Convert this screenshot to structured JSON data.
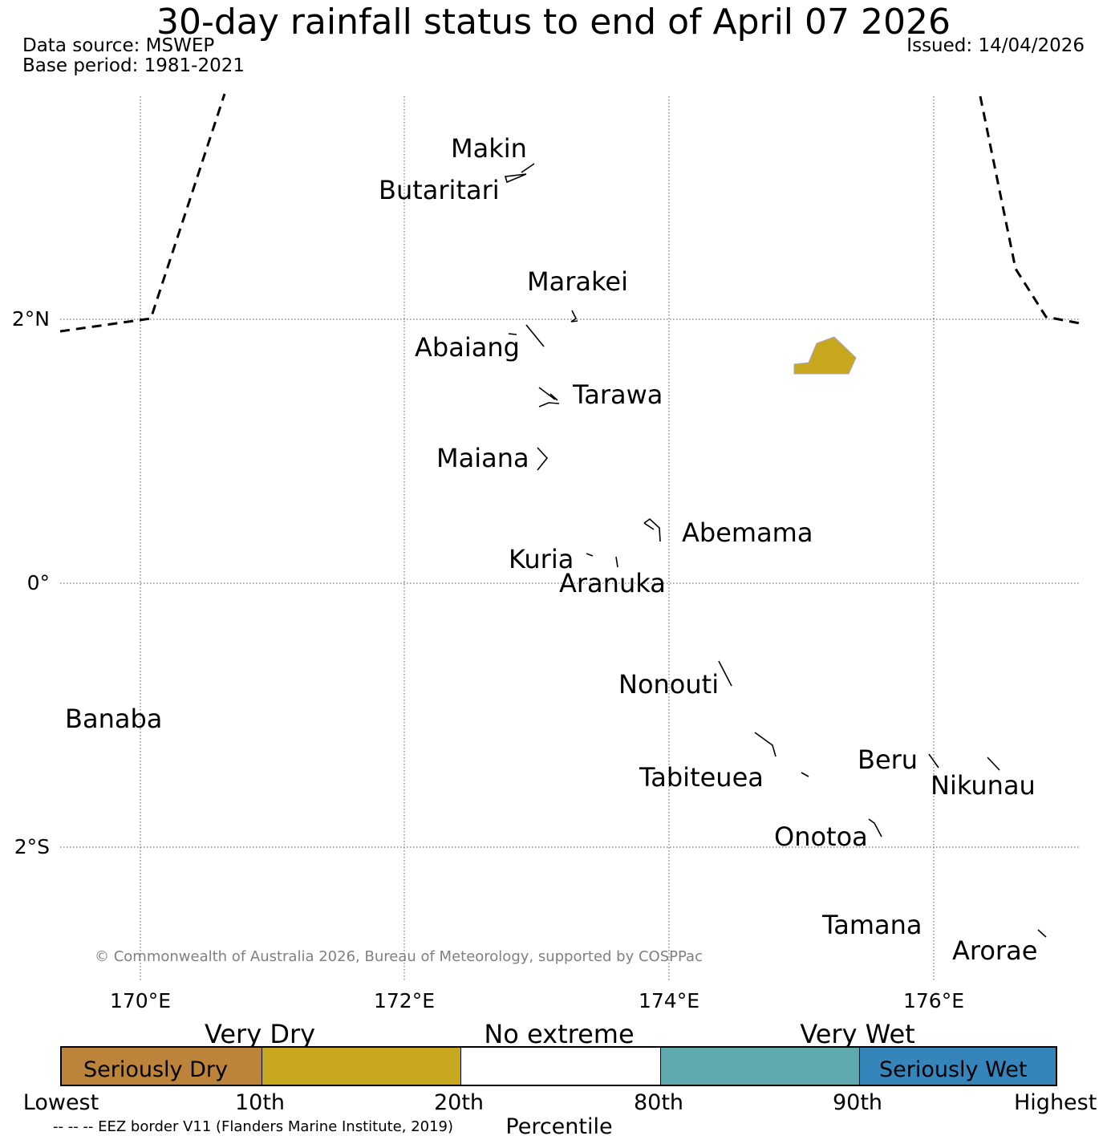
{
  "header": {
    "title": "30-day rainfall status to end of April 07 2026",
    "data_source": "Data source: MSWEP",
    "base_period": "Base period: 1981-2021",
    "issued": "Issued: 14/04/2026"
  },
  "map": {
    "lat_labels": [
      "2°N",
      "0°",
      "2°S"
    ],
    "lon_labels": [
      "170°E",
      "172°E",
      "174°E",
      "176°E"
    ],
    "islands": {
      "makin": "Makin",
      "butaritari": "Butaritari",
      "marakei": "Marakei",
      "abaiang": "Abaiang",
      "tarawa": "Tarawa",
      "maiana": "Maiana",
      "abemama": "Abemama",
      "kuria": "Kuria",
      "aranuka": "Aranuka",
      "nonouti": "Nonouti",
      "banaba": "Banaba",
      "beru": "Beru",
      "tabiteuea": "Tabiteuea",
      "nikunau": "Nikunau",
      "onotoa": "Onotoa",
      "tamana": "Tamana",
      "arorae": "Arorae"
    },
    "copyright": "© Commonwealth of Australia 2026, Bureau of Meteorology, supported by COSPPac"
  },
  "legend": {
    "categories": [
      "Very Dry",
      "No extreme",
      "Very Wet"
    ],
    "segments": [
      {
        "label": "Seriously Dry",
        "color": "#bc843b"
      },
      {
        "label": "",
        "color": "#c6a71e"
      },
      {
        "label": "",
        "color": "#ffffff"
      },
      {
        "label": "",
        "color": "#5eaaaf"
      },
      {
        "label": "Seriously Wet",
        "color": "#3585bb"
      }
    ],
    "percentiles": [
      "Lowest",
      "10th",
      "20th",
      "80th",
      "90th",
      "Highest"
    ],
    "axis_label": "Percentile",
    "eez_note": "-- -- -- EEZ border V11 (Flanders Marine Institute, 2019)"
  },
  "colors": {
    "very_dry": "#c6a71e",
    "seriously_dry": "#bc843b",
    "very_wet": "#5eaaaf",
    "seriously_wet": "#3585bb",
    "copyright_gray": "#808080"
  }
}
